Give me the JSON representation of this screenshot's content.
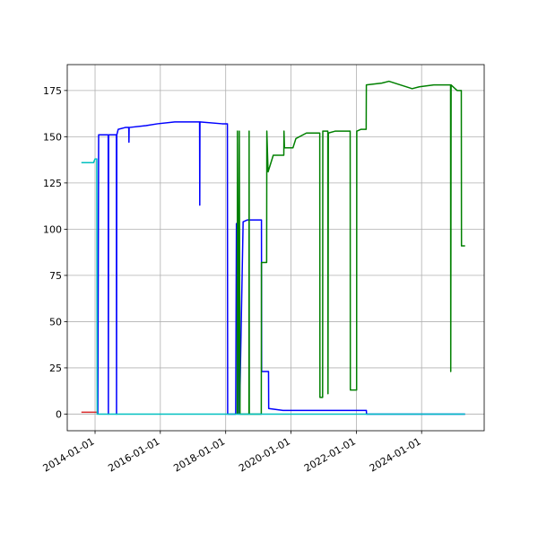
{
  "chart_data": {
    "type": "line",
    "xlim": [
      "2013-02-24",
      "2025-12-01"
    ],
    "ylim": [
      -9,
      189
    ],
    "xticks": [
      "2014-01-01",
      "2016-01-01",
      "2018-01-01",
      "2020-01-01",
      "2022-01-01",
      "2024-01-01"
    ],
    "yticks": [
      0,
      25,
      50,
      75,
      100,
      125,
      150,
      175
    ],
    "grid": true,
    "series": [
      {
        "color": "#d62728",
        "x": [
          "2013-08-01",
          "2014-01-25"
        ],
        "values": [
          1,
          1
        ]
      },
      {
        "color": "#0000ff",
        "x": [
          "2014-02-01",
          "2014-02-10",
          "2014-05-28",
          "2014-05-30",
          "2014-06-02",
          "2014-08-27",
          "2014-08-29",
          "2014-09-01",
          "2014-09-17",
          "2014-12-06",
          "2015-01-13",
          "2015-01-15",
          "2015-01-17",
          "2015-07-24",
          "2015-12-01",
          "2016-06-10",
          "2017-03-15",
          "2017-03-17",
          "2017-03-19",
          "2017-11-23",
          "2018-01-20",
          "2018-01-23",
          "2018-04-23",
          "2018-05-01",
          "2018-06-01",
          "2018-06-05",
          "2018-07-15",
          "2018-09-01",
          "2019-02-05",
          "2019-02-07",
          "2019-04-25",
          "2019-04-27",
          "2019-10-04",
          "2022-04-23",
          "2022-04-25",
          "2025-05-01"
        ],
        "values": [
          0,
          151,
          151,
          0,
          151,
          151,
          0,
          151,
          154,
          155,
          155,
          147,
          155,
          156,
          157,
          158,
          158,
          113,
          158,
          157,
          157,
          0,
          0,
          103,
          104,
          0,
          104,
          105,
          105,
          23,
          23,
          3,
          2,
          2,
          0,
          0
        ]
      },
      {
        "color": "#008000",
        "x": [
          "2018-05-10",
          "2018-05-12",
          "2018-05-20",
          "2018-06-02",
          "2018-06-10",
          "2018-07-20",
          "2018-09-18",
          "2018-09-20",
          "2018-09-22",
          "2019-02-03",
          "2019-02-05",
          "2019-04-04",
          "2019-04-06",
          "2019-04-20",
          "2019-06-17",
          "2019-10-13",
          "2019-10-15",
          "2019-10-20",
          "2020-01-23",
          "2020-02-25",
          "2020-06-22",
          "2020-11-18",
          "2020-11-20",
          "2020-12-20",
          "2020-12-22",
          "2021-02-16",
          "2021-02-18",
          "2021-02-22",
          "2021-05-08",
          "2021-10-24",
          "2021-10-26",
          "2022-01-04",
          "2022-01-06",
          "2022-02-23",
          "2022-04-21",
          "2022-04-23",
          "2022-10-12",
          "2023-01-01",
          "2023-09-17",
          "2023-12-06",
          "2024-05-16",
          "2024-11-20",
          "2024-11-22",
          "2024-11-26",
          "2025-02-01",
          "2025-03-20",
          "2025-03-22",
          "2025-05-01"
        ],
        "values": [
          0,
          153,
          0,
          153,
          0,
          0,
          0,
          153,
          0,
          0,
          82,
          82,
          153,
          131,
          140,
          140,
          153,
          144,
          144,
          149,
          152,
          152,
          9,
          9,
          153,
          153,
          11,
          152,
          153,
          153,
          13,
          13,
          153,
          154,
          154,
          178,
          179,
          180,
          176,
          177,
          178,
          178,
          23,
          178,
          175,
          175,
          91,
          91
        ]
      },
      {
        "color": "#00bfbf",
        "x": [
          "2013-08-01",
          "2013-12-15",
          "2014-01-01",
          "2014-01-20",
          "2014-01-25",
          "2025-05-01"
        ],
        "values": [
          136,
          136,
          138,
          138,
          0,
          0
        ]
      }
    ]
  }
}
